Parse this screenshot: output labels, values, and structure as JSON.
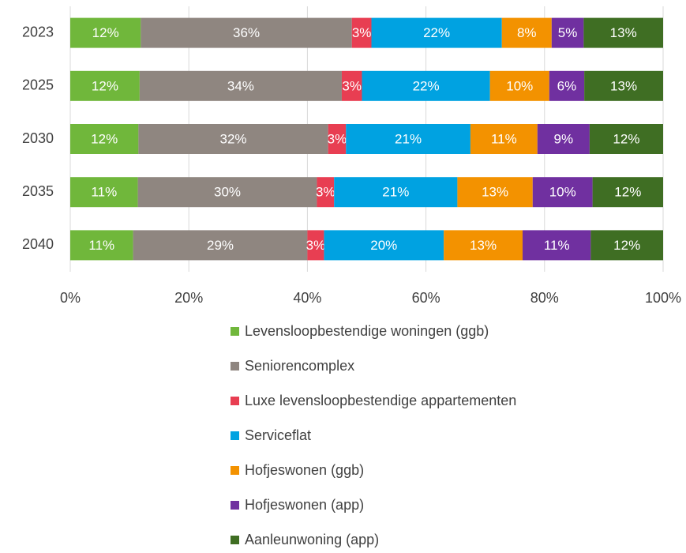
{
  "chart_data": {
    "type": "stacked_bar_horizontal",
    "categories": [
      "2023",
      "2025",
      "2030",
      "2035",
      "2040"
    ],
    "xlim": [
      0,
      100
    ],
    "xticks": [
      {
        "value": 0,
        "label": "0%"
      },
      {
        "value": 20,
        "label": "20%"
      },
      {
        "value": 40,
        "label": "40%"
      },
      {
        "value": 60,
        "label": "60%"
      },
      {
        "value": 80,
        "label": "80%"
      },
      {
        "value": 100,
        "label": "100%"
      }
    ],
    "grid": true,
    "legend": "bottom",
    "series": [
      {
        "name": "Levensloopbestendige woningen (ggb)",
        "color": "#70b73b",
        "values": [
          11.9,
          11.7,
          11.5,
          11.4,
          10.6
        ],
        "value_labels": [
          "12%",
          "12%",
          "12%",
          "11%",
          "11%"
        ]
      },
      {
        "name": "Seniorencomplex",
        "color": "#8f8680",
        "values": [
          35.6,
          34.1,
          32.0,
          30.2,
          29.4
        ],
        "value_labels": [
          "36%",
          "34%",
          "32%",
          "30%",
          "29%"
        ]
      },
      {
        "name": "Luxe levensloopbestendige appartementen",
        "color": "#e83e52",
        "values": [
          3.3,
          3.4,
          3.0,
          2.9,
          2.8
        ],
        "value_labels": [
          "3%",
          "3%",
          "3%",
          "3%",
          "3%"
        ]
      },
      {
        "name": "Serviceflat",
        "color": "#00a2e1",
        "values": [
          22.0,
          21.6,
          21.0,
          20.8,
          20.2
        ],
        "value_labels": [
          "22%",
          "22%",
          "21%",
          "21%",
          "20%"
        ]
      },
      {
        "name": "Hofjeswonen (ggb)",
        "color": "#f39200",
        "values": [
          8.4,
          10.0,
          11.3,
          12.7,
          13.3
        ],
        "value_labels": [
          "8%",
          "10%",
          "11%",
          "13%",
          "13%"
        ]
      },
      {
        "name": "Hofjeswonen (app)",
        "color": "#7030a0",
        "values": [
          5.4,
          5.9,
          8.8,
          10.1,
          11.5
        ],
        "value_labels": [
          "5%",
          "6%",
          "9%",
          "10%",
          "11%"
        ]
      },
      {
        "name": "Aanleunwoning (app)",
        "color": "#3f6e23",
        "values": [
          13.4,
          13.3,
          12.4,
          11.9,
          12.2
        ],
        "value_labels": [
          "13%",
          "13%",
          "12%",
          "12%",
          "12%"
        ]
      }
    ]
  }
}
